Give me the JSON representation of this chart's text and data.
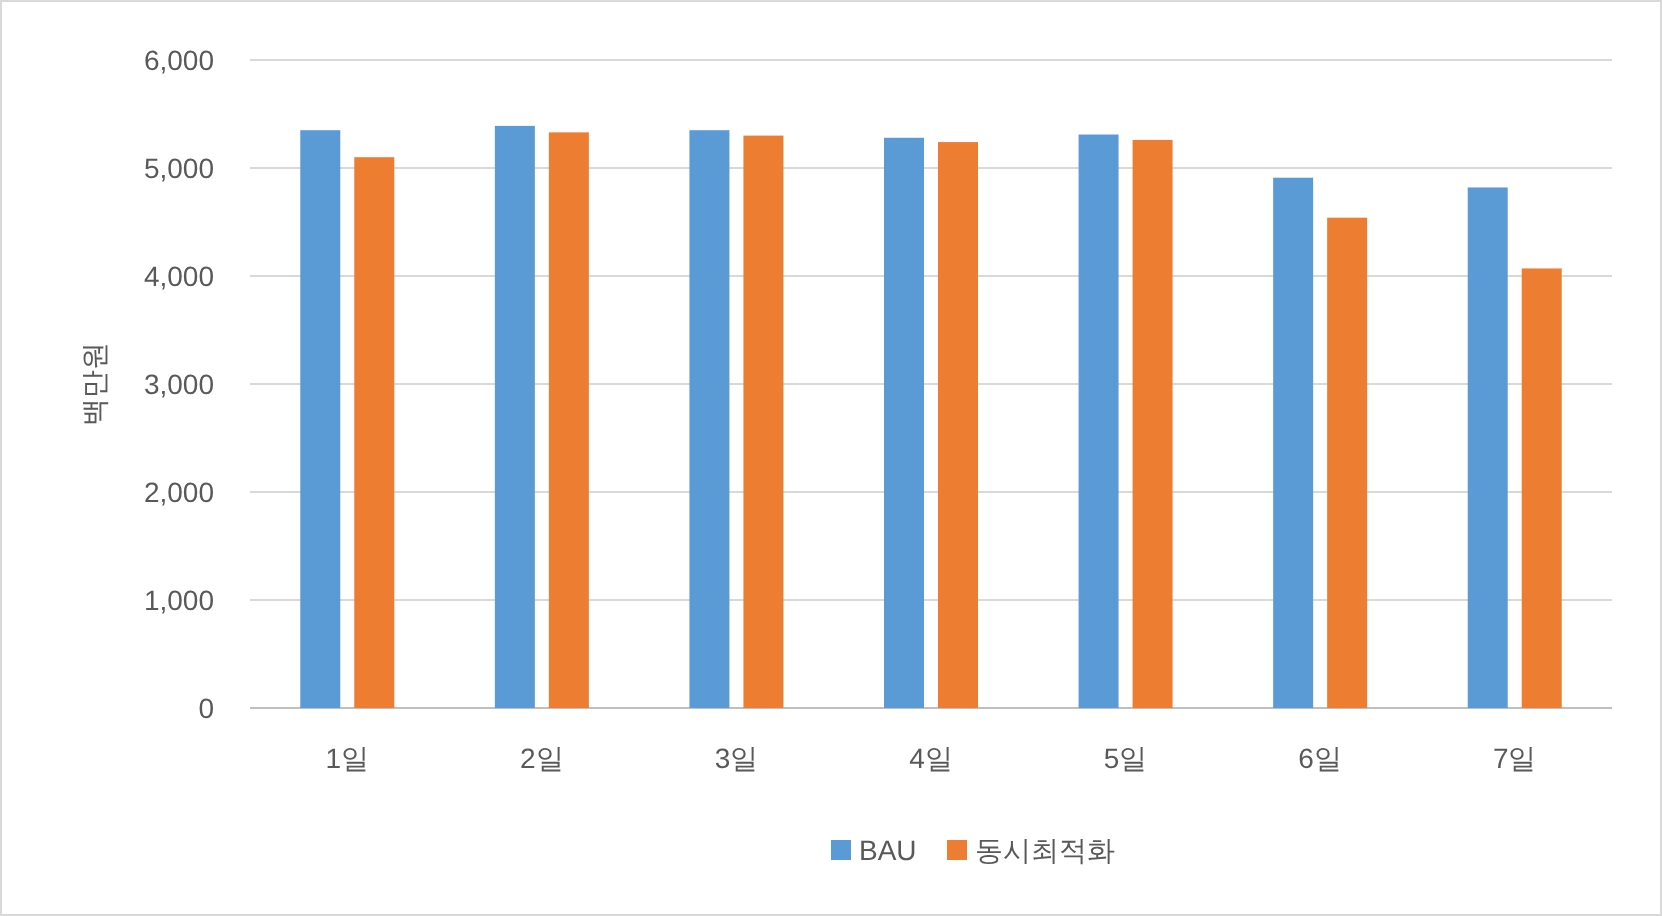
{
  "chart_data": {
    "type": "bar",
    "ylabel": "백만원",
    "categories": [
      "1일",
      "2일",
      "3일",
      "4일",
      "5일",
      "6일",
      "7일"
    ],
    "series": [
      {
        "name": "BAU",
        "color": "#5b9bd5",
        "values": [
          5350,
          5390,
          5350,
          5280,
          5310,
          4910,
          4820
        ]
      },
      {
        "name": "동시최적화",
        "color": "#ed7d31",
        "values": [
          5100,
          5330,
          5300,
          5240,
          5260,
          4540,
          4070
        ]
      }
    ],
    "ylim": [
      0,
      6000
    ],
    "yticks": [
      {
        "value": 0,
        "label": "0"
      },
      {
        "value": 1000,
        "label": "1,000"
      },
      {
        "value": 2000,
        "label": "2,000"
      },
      {
        "value": 3000,
        "label": "3,000"
      },
      {
        "value": 4000,
        "label": "4,000"
      },
      {
        "value": 5000,
        "label": "5,000"
      },
      {
        "value": 6000,
        "label": "6,000"
      }
    ],
    "grid": "y",
    "legend": "bottom"
  }
}
